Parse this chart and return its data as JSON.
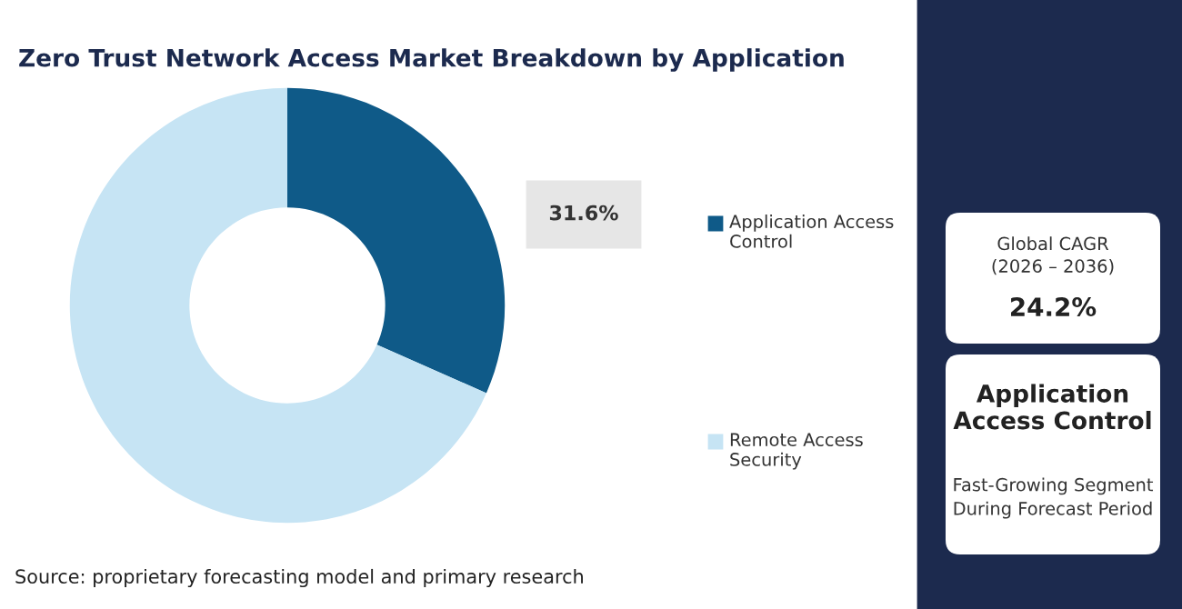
{
  "chart_data": {
    "type": "donut",
    "title": "Zero Trust Network Access Market Breakdown by Application",
    "categories": [
      "Application Access Control",
      "Remote Access Security"
    ],
    "values": [
      31.6,
      68.4
    ],
    "colors": [
      "#0f5a88",
      "#c6e4f4"
    ],
    "value_labels": [
      "31.6%",
      null
    ],
    "legend": "right",
    "annotations": [
      "Source: proprietary forecasting model and primary research",
      "Global CAGR\n(2026 – 2036)",
      "24.2%",
      "Application\nAccess Control",
      "Fast-Growing Segment\nDuring Forecast Period"
    ]
  }
}
